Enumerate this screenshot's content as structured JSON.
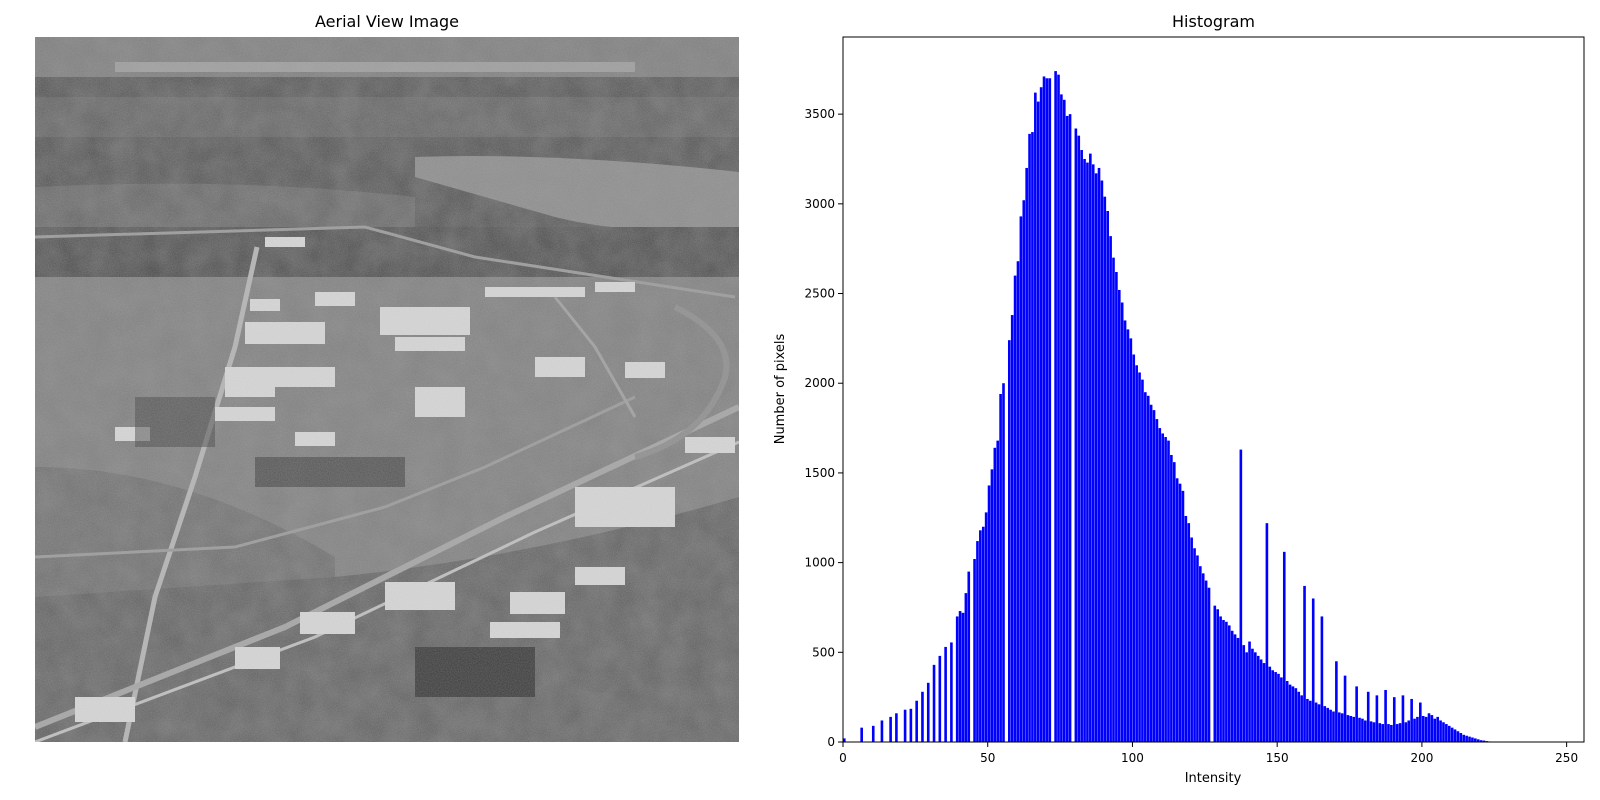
{
  "image_panel": {
    "title": "Aerial View Image"
  },
  "colors": {
    "bar": "#0000ff",
    "axes": "#000000",
    "background": "#ffffff"
  },
  "chart_data": {
    "type": "bar",
    "title": "Histogram",
    "xlabel": "Intensity",
    "ylabel": "Number of pixels",
    "xlim": [
      0,
      256
    ],
    "ylim": [
      0,
      3930
    ],
    "xticks": [
      0,
      50,
      100,
      150,
      200,
      250
    ],
    "yticks": [
      0,
      500,
      1000,
      1500,
      2000,
      2500,
      3000,
      3500
    ],
    "grid": false,
    "bins": "0-255",
    "values": [
      20,
      0,
      0,
      0,
      0,
      0,
      80,
      0,
      0,
      0,
      90,
      0,
      0,
      120,
      0,
      0,
      140,
      0,
      160,
      0,
      0,
      180,
      0,
      185,
      0,
      230,
      0,
      280,
      0,
      330,
      0,
      430,
      0,
      480,
      0,
      530,
      0,
      555,
      0,
      700,
      730,
      720,
      830,
      950,
      0,
      1020,
      1120,
      1180,
      1200,
      1280,
      1430,
      1520,
      1640,
      1680,
      1940,
      2000,
      0,
      2240,
      2380,
      2600,
      2680,
      2930,
      3020,
      3200,
      3390,
      3400,
      3620,
      3570,
      3650,
      3710,
      3700,
      3700,
      0,
      3740,
      3720,
      3610,
      3580,
      3490,
      3500,
      0,
      3420,
      3380,
      3300,
      3250,
      3230,
      3280,
      3220,
      3170,
      3200,
      3130,
      3040,
      2960,
      2820,
      2700,
      2620,
      2520,
      2450,
      2350,
      2300,
      2250,
      2160,
      2100,
      2060,
      2020,
      1950,
      1930,
      1880,
      1850,
      1800,
      1750,
      1720,
      1700,
      1680,
      1600,
      1560,
      1470,
      1440,
      1400,
      1260,
      1220,
      1140,
      1080,
      1040,
      980,
      940,
      900,
      860,
      0,
      760,
      740,
      700,
      680,
      670,
      650,
      620,
      600,
      580,
      1630,
      540,
      500,
      560,
      520,
      500,
      480,
      460,
      440,
      1220,
      420,
      400,
      390,
      380,
      360,
      1060,
      340,
      320,
      310,
      300,
      280,
      260,
      870,
      240,
      230,
      800,
      220,
      210,
      700,
      200,
      190,
      180,
      170,
      450,
      165,
      160,
      370,
      150,
      145,
      140,
      310,
      135,
      130,
      120,
      280,
      115,
      110,
      260,
      105,
      100,
      290,
      100,
      95,
      250,
      100,
      105,
      260,
      110,
      120,
      240,
      130,
      140,
      220,
      145,
      140,
      160,
      150,
      130,
      140,
      120,
      110,
      100,
      90,
      80,
      70,
      60,
      50,
      40,
      35,
      30,
      25,
      20,
      15,
      10,
      8,
      5,
      3,
      2,
      1,
      0,
      0,
      0,
      0,
      0,
      0,
      0,
      0,
      0,
      0,
      0,
      0,
      0,
      0,
      0,
      0,
      0,
      0,
      0,
      0,
      0,
      0,
      0,
      0,
      0,
      0,
      0,
      0,
      0
    ]
  }
}
